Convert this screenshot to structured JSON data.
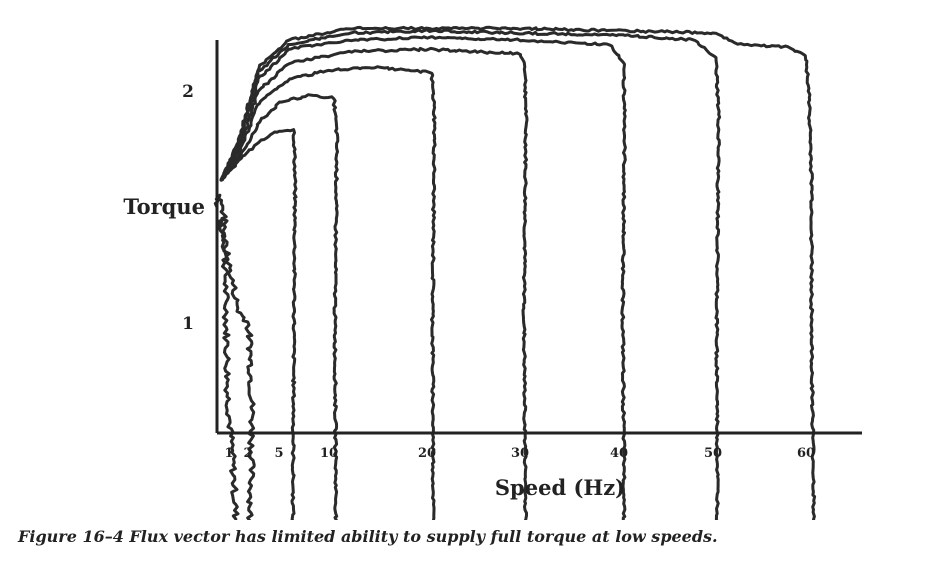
{
  "caption": "Figure 16–4  Flux vector has limited ability to supply full torque at low speeds.",
  "chart_data": {
    "type": "line",
    "title": "",
    "xlabel": "Speed (Hz)",
    "ylabel": "Torque",
    "x_ticks": [
      1,
      2,
      5,
      10,
      20,
      30,
      40,
      50,
      60
    ],
    "y_ticks": [
      1,
      2
    ],
    "xlim": [
      0,
      66
    ],
    "ylim": [
      0,
      2.3
    ],
    "grid": false,
    "series": [
      {
        "values": [
          [
            0,
            1.5
          ],
          [
            0.2,
            1.55
          ],
          [
            0.6,
            1.45
          ],
          [
            0.9,
            0.7
          ],
          [
            1.2,
            0.4
          ],
          [
            1.4,
            0.1
          ],
          [
            1.5,
            0.02
          ]
        ]
      },
      {
        "values": [
          [
            0,
            1.4
          ],
          [
            0.3,
            1.45
          ],
          [
            0.8,
            1.3
          ],
          [
            1.5,
            1.05
          ],
          [
            2.0,
            1.0
          ],
          [
            2.2,
            0.9
          ],
          [
            2.4,
            0.6
          ],
          [
            2.3,
            0.3
          ],
          [
            2.1,
            0.05
          ],
          [
            2.0,
            0.0
          ]
        ]
      },
      {
        "values": [
          [
            0.4,
            1.62
          ],
          [
            1.5,
            1.7
          ],
          [
            3,
            1.78
          ],
          [
            4.5,
            1.82
          ],
          [
            6.5,
            1.83
          ],
          [
            6.6,
            1.6
          ],
          [
            6.5,
            1.0
          ],
          [
            6.4,
            0.3
          ],
          [
            6.4,
            0.0
          ]
        ]
      },
      {
        "values": [
          [
            0.4,
            1.62
          ],
          [
            1.5,
            1.7
          ],
          [
            3,
            1.86
          ],
          [
            5,
            1.95
          ],
          [
            8,
            1.98
          ],
          [
            10.5,
            1.97
          ],
          [
            10.8,
            1.8
          ],
          [
            10.6,
            1.0
          ],
          [
            10.7,
            0.3
          ],
          [
            10.7,
            0.0
          ]
        ]
      },
      {
        "values": [
          [
            0.4,
            1.62
          ],
          [
            1.5,
            1.72
          ],
          [
            3,
            1.95
          ],
          [
            6,
            2.05
          ],
          [
            10,
            2.09
          ],
          [
            15,
            2.1
          ],
          [
            20.5,
            2.08
          ],
          [
            20.8,
            1.9
          ],
          [
            20.6,
            1.0
          ],
          [
            20.7,
            0.0
          ]
        ]
      },
      {
        "values": [
          [
            0.4,
            1.62
          ],
          [
            1.5,
            1.74
          ],
          [
            3,
            2.0
          ],
          [
            6,
            2.12
          ],
          [
            12,
            2.17
          ],
          [
            20,
            2.18
          ],
          [
            30,
            2.16
          ],
          [
            30.5,
            2.12
          ],
          [
            30.6,
            1.9
          ],
          [
            30.4,
            1.0
          ],
          [
            30.6,
            0.0
          ]
        ]
      },
      {
        "values": [
          [
            0.4,
            1.62
          ],
          [
            1.5,
            1.76
          ],
          [
            3,
            2.05
          ],
          [
            6,
            2.18
          ],
          [
            12,
            2.22
          ],
          [
            20,
            2.23
          ],
          [
            30,
            2.22
          ],
          [
            39,
            2.2
          ],
          [
            40.5,
            2.12
          ],
          [
            40.6,
            1.9
          ],
          [
            40.4,
            1.0
          ],
          [
            40.6,
            0.0
          ]
        ]
      },
      {
        "values": [
          [
            0.4,
            1.62
          ],
          [
            1.5,
            1.77
          ],
          [
            3,
            2.08
          ],
          [
            6,
            2.2
          ],
          [
            12,
            2.25
          ],
          [
            20,
            2.26
          ],
          [
            30,
            2.25
          ],
          [
            40,
            2.24
          ],
          [
            48,
            2.22
          ],
          [
            50.3,
            2.14
          ],
          [
            50.6,
            1.9
          ],
          [
            50.4,
            1.0
          ],
          [
            50.5,
            0.0
          ]
        ]
      },
      {
        "values": [
          [
            0.4,
            1.62
          ],
          [
            1.5,
            1.78
          ],
          [
            3,
            2.1
          ],
          [
            6,
            2.22
          ],
          [
            12,
            2.27
          ],
          [
            20,
            2.27
          ],
          [
            30,
            2.27
          ],
          [
            40,
            2.26
          ],
          [
            50,
            2.25
          ],
          [
            53,
            2.2
          ],
          [
            58,
            2.19
          ],
          [
            60,
            2.15
          ],
          [
            60.3,
            2.0
          ],
          [
            60.6,
            1.6
          ],
          [
            60.6,
            0.9
          ],
          [
            60.8,
            0.3
          ],
          [
            60.9,
            0.0
          ]
        ]
      }
    ]
  }
}
